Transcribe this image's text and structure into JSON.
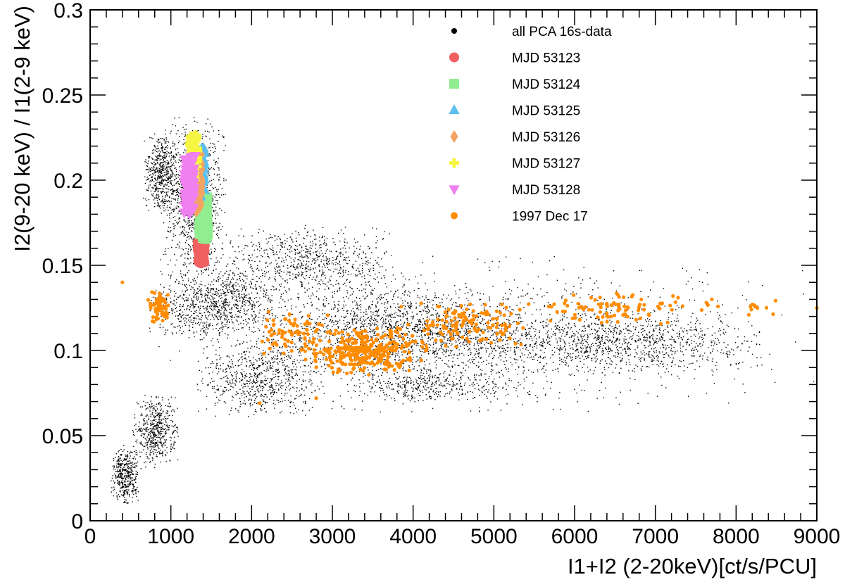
{
  "chart_data": {
    "type": "scatter",
    "title": "",
    "xlabel": "I1+I2 (2-20keV)[ct/s/PCU]",
    "ylabel": "I2(9-20 keV) / I1(2-9 keV)",
    "xlim": [
      0,
      9000
    ],
    "ylim": [
      0,
      0.3
    ],
    "x_ticks": [
      0,
      1000,
      2000,
      3000,
      4000,
      5000,
      6000,
      7000,
      8000,
      9000
    ],
    "x_tick_labels": [
      "0",
      "1000",
      "2000",
      "3000",
      "4000",
      "5000",
      "6000",
      "7000",
      "8000",
      "9000"
    ],
    "y_ticks": [
      0,
      0.05,
      0.1,
      0.15,
      0.2,
      0.25,
      0.3
    ],
    "y_tick_labels": [
      "0",
      "0.05",
      "0.1",
      "0.15",
      "0.2",
      "0.25",
      "0.3"
    ],
    "grid": false,
    "legend_position": "top-right",
    "series": [
      {
        "name": "all PCA 16s-data",
        "marker": "dot",
        "color": "#000000",
        "clusters": [
          {
            "x": [
              250,
              600
            ],
            "y": [
              0.01,
              0.045
            ]
          },
          {
            "x": [
              500,
              1100
            ],
            "y": [
              0.03,
              0.075
            ]
          },
          {
            "x": [
              650,
              1100
            ],
            "y": [
              0.18,
              0.23
            ]
          },
          {
            "x": [
              850,
              1700
            ],
            "y": [
              0.14,
              0.24
            ]
          },
          {
            "x": [
              700,
              2400
            ],
            "y": [
              0.105,
              0.15
            ]
          },
          {
            "x": [
              1300,
              2900
            ],
            "y": [
              0.06,
              0.11
            ]
          },
          {
            "x": [
              1500,
              3800
            ],
            "y": [
              0.13,
              0.175
            ]
          },
          {
            "x": [
              2000,
              5500
            ],
            "y": [
              0.085,
              0.14
            ]
          },
          {
            "x": [
              4000,
              8500
            ],
            "y": [
              0.085,
              0.125
            ]
          },
          {
            "x": [
              3000,
              5500
            ],
            "y": [
              0.07,
              0.09
            ]
          },
          {
            "x": [
              800,
              9000
            ],
            "y": [
              0.06,
              0.16
            ]
          }
        ]
      },
      {
        "name": "MJD 53123",
        "marker": "circle",
        "color": "#f06060",
        "x_range": [
          1330,
          1420
        ],
        "y_range": [
          0.151,
          0.165
        ]
      },
      {
        "name": "MJD 53124",
        "marker": "square",
        "color": "#90ee90",
        "x_range": [
          1350,
          1460
        ],
        "y_range": [
          0.165,
          0.19
        ]
      },
      {
        "name": "MJD 53125",
        "marker": "triangle",
        "color": "#5bc0f0",
        "x_range": [
          1280,
          1420
        ],
        "y_range": [
          0.19,
          0.22
        ]
      },
      {
        "name": "MJD 53126",
        "marker": "diamond",
        "color": "#f4a460",
        "x_range": [
          1250,
          1380
        ],
        "y_range": [
          0.18,
          0.215
        ]
      },
      {
        "name": "MJD 53127",
        "marker": "cross",
        "color": "#f5f542",
        "x_range": [
          1200,
          1330
        ],
        "y_range": [
          0.2,
          0.227
        ]
      },
      {
        "name": "MJD 53128",
        "marker": "triangle-down",
        "color": "#f080f0",
        "x_range": [
          1160,
          1300
        ],
        "y_range": [
          0.18,
          0.215
        ]
      },
      {
        "name": "1997 Dec 17",
        "marker": "dot",
        "color": "#ff8c00",
        "clusters": [
          {
            "x": [
              700,
              1000
            ],
            "y": [
              0.115,
              0.135
            ]
          },
          {
            "x": [
              2000,
              3000
            ],
            "y": [
              0.095,
              0.125
            ]
          },
          {
            "x": [
              2600,
              4200
            ],
            "y": [
              0.085,
              0.115
            ]
          },
          {
            "x": [
              3800,
              5500
            ],
            "y": [
              0.1,
              0.13
            ]
          },
          {
            "x": [
              5500,
              7500
            ],
            "y": [
              0.115,
              0.135
            ]
          },
          {
            "x": [
              7500,
              9000
            ],
            "y": [
              0.12,
              0.13
            ]
          }
        ],
        "points": [
          [
            9000,
            0.125
          ],
          [
            8200,
            0.127
          ],
          [
            7700,
            0.13
          ],
          [
            2100,
            0.069
          ],
          [
            2800,
            0.072
          ],
          [
            400,
            0.14
          ]
        ]
      }
    ]
  }
}
